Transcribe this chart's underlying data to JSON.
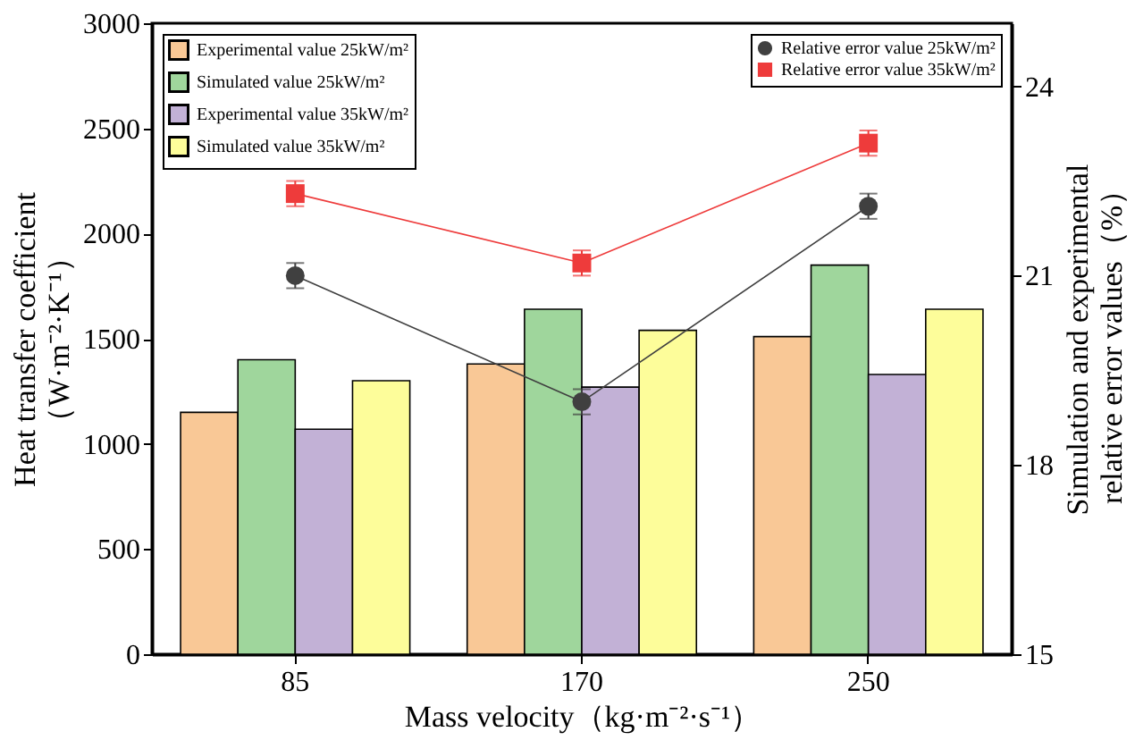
{
  "chart_data": {
    "type": "bar",
    "xlabel": "Mass velocity（kg·m⁻²·s⁻¹）",
    "ylabel": [
      "Heat transfer coefficient",
      "（W·m⁻²·K⁻¹）"
    ],
    "y2label": [
      "Simulation and experimental",
      "relative error values（%）"
    ],
    "categories": [
      "85",
      "170",
      "250"
    ],
    "series": [
      {
        "name": "Experimental value 25kW/m²",
        "type": "bar",
        "color": "#f9c896",
        "values": [
          1150,
          1380,
          1510
        ]
      },
      {
        "name": "Simulated value 25kW/m²",
        "type": "bar",
        "color": "#9fd69c",
        "values": [
          1400,
          1640,
          1850
        ]
      },
      {
        "name": "Experimental value 35kW/m²",
        "type": "bar",
        "color": "#c2b1d6",
        "values": [
          1070,
          1270,
          1330
        ]
      },
      {
        "name": "Simulated value 35kW/m²",
        "type": "bar",
        "color": "#fdfd9a",
        "values": [
          1300,
          1540,
          1640
        ]
      },
      {
        "name": "Relative error value 25kW/m²",
        "type": "line",
        "axis": "y2",
        "marker": "circle",
        "color": "#404040",
        "values": [
          21.0,
          19.0,
          22.1
        ],
        "errors": [
          0.2,
          0.2,
          0.2
        ]
      },
      {
        "name": "Relative error value 35kW/m²",
        "type": "line",
        "axis": "y2",
        "marker": "square",
        "color": "#ee3b3b",
        "values": [
          22.3,
          21.2,
          23.1
        ],
        "errors": [
          0.2,
          0.2,
          0.2
        ]
      }
    ],
    "ylim": [
      0,
      3000
    ],
    "yticks": [
      0,
      500,
      1000,
      1500,
      2000,
      2500,
      3000
    ],
    "y2lim": [
      15,
      25
    ],
    "y2ticks": [
      15,
      18,
      21,
      24
    ],
    "grid": false,
    "legend": "top"
  }
}
